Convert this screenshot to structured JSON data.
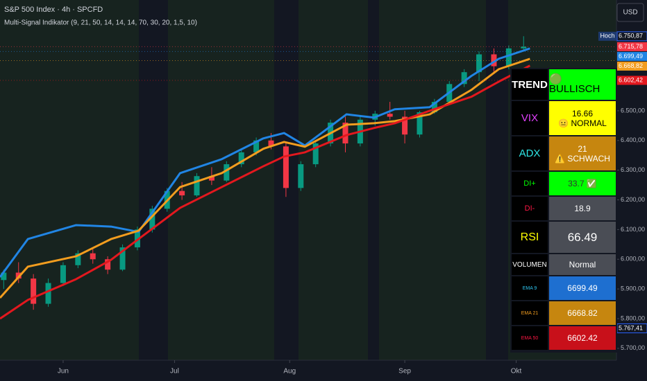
{
  "header": {
    "symbol": "S&P 500 Index · 4h · SPCFD",
    "indicator": "Multi-Signal Indikator (9, 21, 50, 14, 14, 14, 70, 30, 20, 1,5, 10)",
    "currency": "USD"
  },
  "chart_data": {
    "type": "candlestick",
    "xlim": [
      135,
      301
    ],
    "ylim": [
      5660,
      6873
    ],
    "xticks": [
      {
        "value": 152,
        "label": "Jun"
      },
      {
        "value": 182,
        "label": "Jul"
      },
      {
        "value": 213,
        "label": "Aug"
      },
      {
        "value": 244,
        "label": "Sep"
      },
      {
        "value": 274,
        "label": "Okt"
      }
    ],
    "yticks": [
      {
        "value": 5700,
        "label": "5.700,00"
      },
      {
        "value": 5800,
        "label": "5.800,00"
      },
      {
        "value": 5900,
        "label": "5.900,00"
      },
      {
        "value": 6000,
        "label": "6.000,00"
      },
      {
        "value": 6100,
        "label": "6.100,00"
      },
      {
        "value": 6200,
        "label": "6.200,00"
      },
      {
        "value": 6300,
        "label": "6.300,00"
      },
      {
        "value": 6400,
        "label": "6.400,00"
      },
      {
        "value": 6500,
        "label": "6.500,00"
      }
    ],
    "up_color": "#089981",
    "down_color": "#f23645",
    "candles": {
      "x": [
        136,
        140,
        144,
        148,
        152,
        156,
        160,
        164,
        168,
        172,
        176,
        180,
        184,
        188,
        192,
        196,
        200,
        204,
        208,
        212,
        216,
        220,
        224,
        228,
        232,
        236,
        240,
        244,
        248,
        252,
        256,
        260,
        264,
        268,
        272,
        276
      ],
      "open": [
        5930,
        5955,
        5935,
        5850,
        5920,
        5980,
        6020,
        6000,
        5965,
        6040,
        6100,
        6170,
        6230,
        6215,
        6280,
        6265,
        6320,
        6360,
        6400,
        6380,
        6240,
        6320,
        6390,
        6460,
        6390,
        6470,
        6490,
        6480,
        6420,
        6495,
        6530,
        6590,
        6630,
        6690,
        6650,
        6710
      ],
      "high": [
        5965,
        5990,
        5950,
        5935,
        5990,
        6030,
        6040,
        6010,
        6050,
        6110,
        6180,
        6240,
        6260,
        6290,
        6310,
        6330,
        6370,
        6410,
        6425,
        6390,
        6330,
        6400,
        6470,
        6480,
        6480,
        6500,
        6530,
        6500,
        6500,
        6540,
        6600,
        6640,
        6700,
        6710,
        6720,
        6751
      ],
      "low": [
        5900,
        5920,
        5830,
        5840,
        5910,
        5970,
        5985,
        5950,
        5960,
        6030,
        6090,
        6160,
        6200,
        6210,
        6250,
        6260,
        6310,
        6350,
        6370,
        6210,
        6230,
        6310,
        6380,
        6360,
        6380,
        6450,
        6470,
        6390,
        6410,
        6490,
        6520,
        6580,
        6600,
        6630,
        6640,
        6700
      ],
      "close": [
        5955,
        5935,
        5850,
        5920,
        5980,
        6020,
        6000,
        5965,
        6040,
        6100,
        6170,
        6230,
        6215,
        6280,
        6265,
        6320,
        6360,
        6400,
        6380,
        6240,
        6320,
        6390,
        6460,
        6390,
        6470,
        6490,
        6480,
        6420,
        6495,
        6530,
        6590,
        6630,
        6690,
        6650,
        6710,
        6716
      ]
    },
    "x": [
      135,
      142.5,
      155.5,
      164.9,
      172.3,
      183.5,
      194.7,
      205.9,
      211.5,
      217.1,
      228.3,
      235.7,
      241.3,
      250.7,
      261.9,
      269.3,
      277.7
    ],
    "series": [
      {
        "name": "EMA 9",
        "color": "#2185e4",
        "values": [
          5940,
          6068,
          6115,
          6110,
          6092,
          6290,
          6337,
          6407,
          6425,
          6383,
          6488,
          6477,
          6505,
          6512,
          6617,
          6675,
          6710
        ]
      },
      {
        "name": "EMA 21",
        "color": "#f29d1f",
        "values": [
          5870,
          5975,
          6010,
          6068,
          6096,
          6243,
          6290,
          6372,
          6395,
          6379,
          6453,
          6458,
          6465,
          6488,
          6570,
          6640,
          6675
        ]
      },
      {
        "name": "EMA 50",
        "color": "#e3181e",
        "values": [
          5800,
          5863,
          5933,
          5998,
          6068,
          6173,
          6243,
          6313,
          6346,
          6360,
          6418,
          6442,
          6458,
          6500,
          6547,
          6598,
          6652
        ]
      }
    ],
    "badges": [
      {
        "name": "Hoch",
        "value": 6750.87,
        "label": "6.750,87",
        "color": "#131722"
      },
      {
        "value": 6715.78,
        "label": "6.715,78",
        "color": "#f23645"
      },
      {
        "value": 6699.49,
        "label": "6.699,49",
        "color": "#2185e4"
      },
      {
        "value": 6668.82,
        "label": "6.668,82",
        "color": "#f29d1f"
      },
      {
        "value": 6602.42,
        "label": "6.602,42",
        "color": "#e3181e"
      },
      {
        "name": "Tief",
        "value": 5767.41,
        "label": "5.767,41",
        "color": "#131722"
      }
    ]
  },
  "panel": {
    "rows": [
      {
        "label": "TREND",
        "value": "🟢 BULLISCH",
        "label_color": "#ffffff",
        "bg": "#00ff00",
        "value_color": "#000000"
      },
      {
        "label": "VIX",
        "value": "16.66",
        "sub": "😐 NORMAL",
        "label_color": "#e040fb",
        "bg": "#ffff00",
        "value_color": "#000000"
      },
      {
        "label": "ADX",
        "value": "21",
        "sub": "⚠️ SCHWACH",
        "label_color": "#2ee6e6",
        "bg": "#c6860f",
        "value_color": "#ffffff"
      },
      {
        "label": "DI+",
        "value": "33.7 ✅",
        "label_color": "#00ff00",
        "bg": "#00ff00",
        "value_color": "#333333"
      },
      {
        "label": "DI-",
        "value": "18.9",
        "label_color": "#ff1744",
        "bg": "#4a4d55",
        "value_color": "#ffffff"
      },
      {
        "label": "RSI",
        "value": "66.49",
        "label_color": "#ffff00",
        "bg": "#4a4d55",
        "value_color": "#ffffff"
      },
      {
        "label": "VOLUMEN",
        "value": "Normal",
        "label_color": "#ffffff",
        "bg": "#4a4d55",
        "value_color": "#ffffff"
      },
      {
        "label": "EMA 9",
        "value": "6699.49",
        "label_color": "#2ec5f0",
        "bg": "#1e6fd0",
        "value_color": "#ffffff"
      },
      {
        "label": "EMA 21",
        "value": "6668.82",
        "label_color": "#f29d1f",
        "bg": "#c6860f",
        "value_color": "#ffffff"
      },
      {
        "label": "EMA 50",
        "value": "6602.42",
        "label_color": "#ff1744",
        "bg": "#c8101a",
        "value_color": "#ffffff"
      }
    ]
  }
}
